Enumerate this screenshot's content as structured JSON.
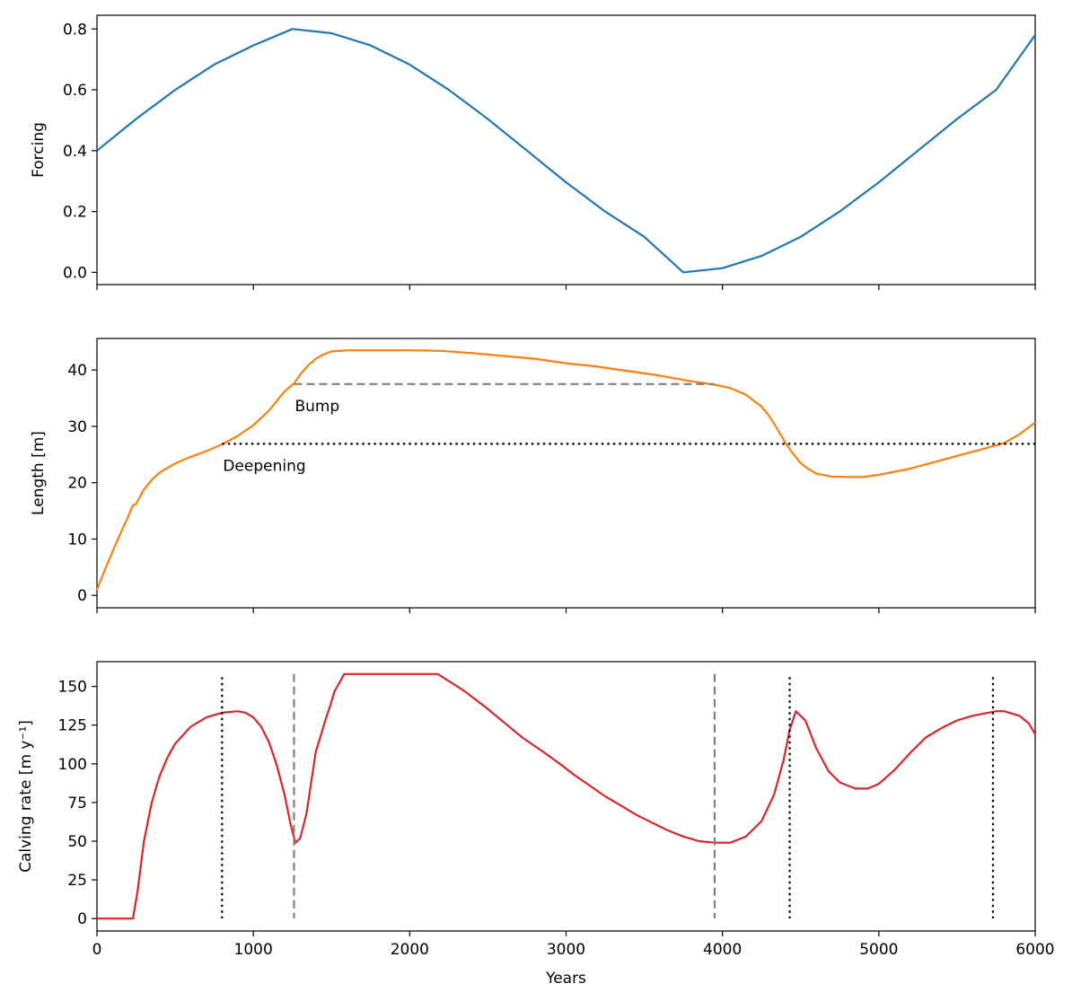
{
  "chart_data": [
    {
      "type": "line",
      "ylabel": "Forcing",
      "xlabel": "",
      "xlim": [
        0,
        6000
      ],
      "ylim": [
        -0.04,
        0.845
      ],
      "xticks": [
        0,
        1000,
        2000,
        3000,
        4000,
        5000,
        6000
      ],
      "show_x_tick_labels": false,
      "yticks": [
        0.0,
        0.2,
        0.4,
        0.6,
        0.8
      ],
      "ytick_labels": [
        "0.0",
        "0.2",
        "0.4",
        "0.6",
        "0.8"
      ],
      "grid": false,
      "series": [
        {
          "color": "#1f77b4",
          "x": [
            0,
            250,
            500,
            750,
            1000,
            1250,
            1500,
            1750,
            2000,
            2250,
            2500,
            2750,
            3000,
            3250,
            3500,
            3750,
            4000,
            4250,
            4500,
            4750,
            5000,
            5250,
            5500,
            5750,
            6000
          ],
          "y": [
            0.4,
            0.504,
            0.6,
            0.683,
            0.746,
            0.8,
            0.786,
            0.746,
            0.683,
            0.6,
            0.504,
            0.4,
            0.296,
            0.2,
            0.117,
            0.0,
            0.014,
            0.054,
            0.117,
            0.2,
            0.296,
            0.4,
            0.504,
            0.6,
            0.78
          ]
        }
      ]
    },
    {
      "type": "line",
      "ylabel": "Length [m]",
      "xlabel": "",
      "xlim": [
        0,
        6000
      ],
      "ylim": [
        -2.2,
        45.6
      ],
      "xticks": [
        0,
        1000,
        2000,
        3000,
        4000,
        5000,
        6000
      ],
      "show_x_tick_labels": false,
      "yticks": [
        0,
        10,
        20,
        30,
        40
      ],
      "ytick_labels": [
        "0",
        "10",
        "20",
        "30",
        "40"
      ],
      "grid": false,
      "series": [
        {
          "color": "#ff7f0e",
          "x": [
            0,
            50,
            100,
            150,
            200,
            230,
            250,
            300,
            350,
            400,
            500,
            600,
            700,
            800,
            900,
            1000,
            1100,
            1150,
            1200,
            1260,
            1300,
            1350,
            1400,
            1450,
            1500,
            1600,
            1800,
            2000,
            2200,
            2400,
            2600,
            2800,
            3000,
            3200,
            3400,
            3600,
            3800,
            3950,
            4050,
            4150,
            4250,
            4300,
            4350,
            4400,
            4450,
            4500,
            4550,
            4600,
            4700,
            4800,
            4900,
            5000,
            5200,
            5400,
            5600,
            5800,
            5900,
            6000
          ],
          "y": [
            1,
            4.5,
            7.8,
            11,
            14,
            16,
            16.2,
            18.8,
            20.5,
            21.8,
            23.4,
            24.6,
            25.6,
            26.8,
            28.3,
            30.2,
            32.8,
            34.5,
            36.2,
            37.6,
            39.2,
            40.8,
            42,
            42.8,
            43.3,
            43.5,
            43.5,
            43.5,
            43.4,
            43,
            42.5,
            42,
            41.2,
            40.6,
            39.8,
            39,
            38,
            37.4,
            36.8,
            35.6,
            33.5,
            31.8,
            29.6,
            27.2,
            25.2,
            23.5,
            22.4,
            21.6,
            21.1,
            21,
            21,
            21.4,
            22.5,
            24,
            25.5,
            27,
            28.6,
            30.7
          ]
        }
      ],
      "reference_lines": [
        {
          "label": "Bump",
          "y": 37.5,
          "x_start": 1260,
          "x_end": 3950,
          "style": "dashed",
          "color": "#808080"
        },
        {
          "label": "Deepening",
          "y": 26.9,
          "x_start": 800,
          "x_end": 6000,
          "style": "dotted",
          "color": "#000000"
        }
      ]
    },
    {
      "type": "line",
      "ylabel": "Calving rate [m y⁻¹]",
      "xlabel": "Years",
      "xlim": [
        0,
        6000
      ],
      "ylim": [
        -8,
        166
      ],
      "xticks": [
        0,
        1000,
        2000,
        3000,
        4000,
        5000,
        6000
      ],
      "xtick_labels": [
        "0",
        "1000",
        "2000",
        "3000",
        "4000",
        "5000",
        "6000"
      ],
      "show_x_tick_labels": true,
      "yticks": [
        0,
        25,
        50,
        75,
        100,
        125,
        150
      ],
      "ytick_labels": [
        "0",
        "25",
        "50",
        "75",
        "100",
        "125",
        "150"
      ],
      "grid": false,
      "series": [
        {
          "color": "#d62728",
          "x": [
            0,
            230,
            260,
            300,
            350,
            400,
            450,
            500,
            600,
            700,
            800,
            900,
            950,
            1000,
            1050,
            1100,
            1150,
            1200,
            1240,
            1270,
            1300,
            1340,
            1370,
            1400,
            1430,
            1460,
            1490,
            1520,
            1560,
            1580,
            2180,
            2350,
            2480,
            2600,
            2720,
            2850,
            2960,
            3050,
            3150,
            3250,
            3350,
            3450,
            3550,
            3650,
            3750,
            3850,
            3950,
            4050,
            4150,
            4250,
            4330,
            4390,
            4430,
            4470,
            4530,
            4600,
            4680,
            4750,
            4850,
            4930,
            5000,
            5100,
            5200,
            5300,
            5400,
            5500,
            5600,
            5700,
            5750,
            5800,
            5900,
            5960,
            6000
          ],
          "y": [
            0,
            0,
            18,
            50,
            75,
            92,
            104,
            113,
            124,
            130,
            133,
            134,
            133,
            130,
            124,
            114,
            99,
            80,
            60,
            49,
            52,
            68,
            88,
            108,
            118,
            128,
            137,
            147,
            154,
            158,
            158,
            147,
            137,
            127,
            117,
            108,
            100,
            93,
            86,
            79,
            73,
            67,
            62,
            57,
            53,
            50,
            49,
            49,
            53,
            63,
            80,
            102,
            122,
            134,
            128,
            110,
            95,
            88,
            84,
            84,
            87,
            96,
            107,
            117,
            123,
            128,
            131,
            133,
            134,
            134,
            131,
            126,
            119
          ]
        }
      ],
      "reference_lines": [
        {
          "x": 800,
          "style": "dotted",
          "color": "#000000",
          "y_top": 156
        },
        {
          "x": 1260,
          "style": "dashed",
          "color": "#808080",
          "y_top": 158
        },
        {
          "x": 3950,
          "style": "dashed",
          "color": "#808080",
          "y_top": 158
        },
        {
          "x": 4430,
          "style": "dotted",
          "color": "#000000",
          "y_top": 156
        },
        {
          "x": 5730,
          "style": "dotted",
          "color": "#000000",
          "y_top": 156
        }
      ]
    }
  ]
}
